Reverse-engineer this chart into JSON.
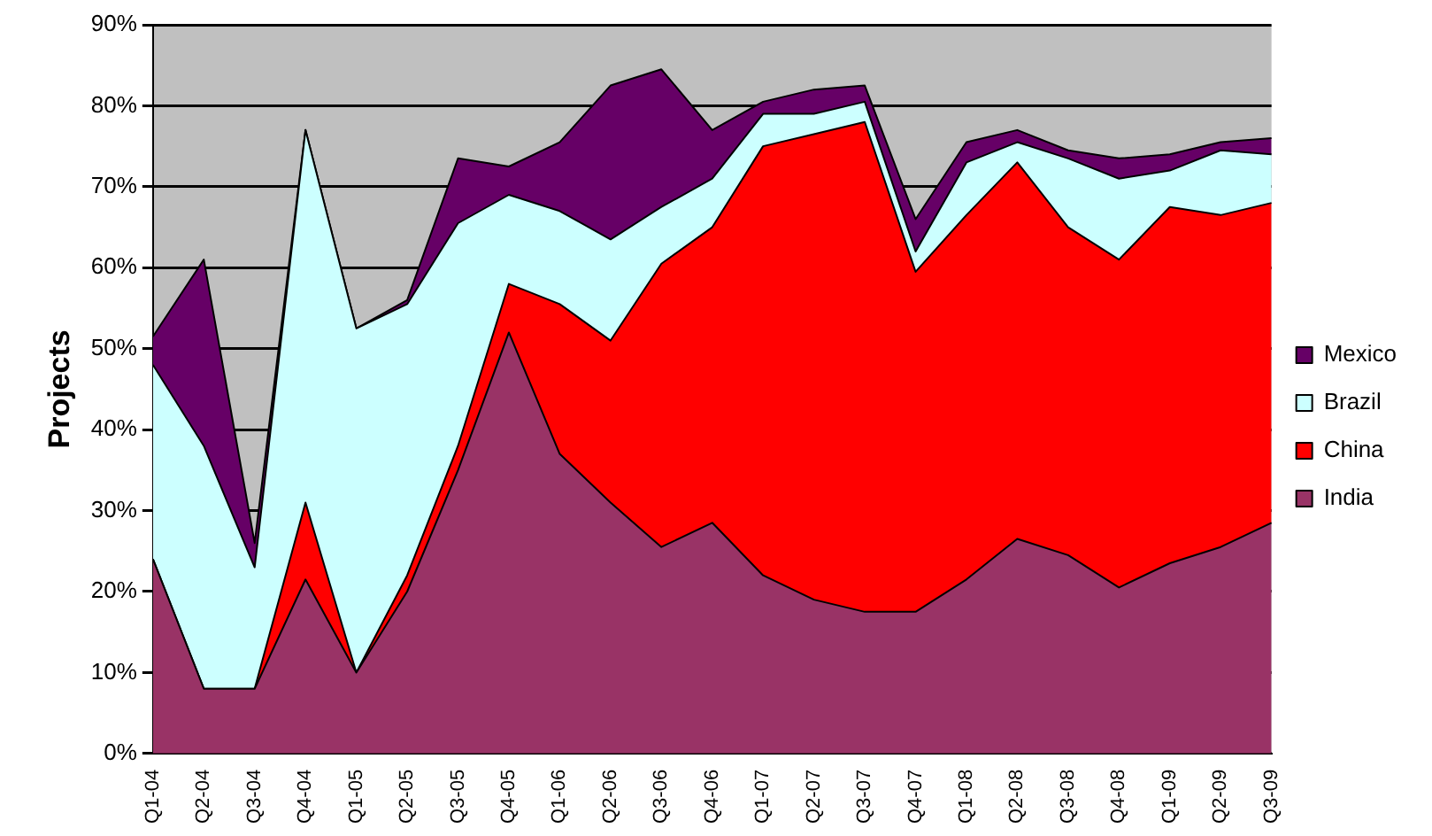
{
  "chart_data": {
    "type": "area",
    "stacked": true,
    "ylabel": "Projects",
    "categories": [
      "Q1-04",
      "Q2-04",
      "Q3-04",
      "Q4-04",
      "Q1-05",
      "Q2-05",
      "Q3-05",
      "Q4-05",
      "Q1-06",
      "Q2-06",
      "Q3-06",
      "Q4-06",
      "Q1-07",
      "Q2-07",
      "Q3-07",
      "Q4-07",
      "Q1-08",
      "Q2-08",
      "Q3-08",
      "Q4-08",
      "Q1-09",
      "Q2-09",
      "Q3-09"
    ],
    "series": [
      {
        "name": "India",
        "color": "#993366",
        "values": [
          24,
          8,
          8,
          21.5,
          10,
          20,
          35,
          52,
          37,
          31,
          25.5,
          28.5,
          22,
          19,
          17.5,
          17.5,
          21.5,
          26.5,
          24.5,
          20.5,
          23.5,
          25.5,
          28.5
        ]
      },
      {
        "name": "China",
        "color": "#ff0000",
        "values": [
          0,
          0,
          0,
          9.5,
          0,
          2,
          3,
          6,
          18.5,
          20,
          35,
          36.5,
          53,
          57.5,
          60.5,
          42,
          45,
          46.5,
          40.5,
          40.5,
          44,
          41,
          39.5
        ]
      },
      {
        "name": "Brazil",
        "color": "#ccffff",
        "values": [
          24,
          30,
          15,
          46,
          42.5,
          33.5,
          27.5,
          11,
          11.5,
          12.5,
          7,
          6,
          4,
          2.5,
          2.5,
          2.5,
          6.5,
          2.5,
          8.5,
          10,
          4.5,
          8,
          6
        ]
      },
      {
        "name": "Mexico",
        "color": "#660066",
        "values": [
          3.5,
          23,
          3,
          0,
          0,
          0.5,
          8,
          3.5,
          8.5,
          19,
          17,
          6,
          1.5,
          3,
          2,
          4,
          2.5,
          1.5,
          1,
          2.5,
          2,
          1,
          2
        ]
      }
    ],
    "ylim": [
      0,
      90
    ],
    "yticks": [
      {
        "value": 0,
        "label": "0%"
      },
      {
        "value": 10,
        "label": "10%"
      },
      {
        "value": 20,
        "label": "20%"
      },
      {
        "value": 30,
        "label": "30%"
      },
      {
        "value": 40,
        "label": "40%"
      },
      {
        "value": 50,
        "label": "50%"
      },
      {
        "value": 60,
        "label": "60%"
      },
      {
        "value": 70,
        "label": "70%"
      },
      {
        "value": 80,
        "label": "80%"
      },
      {
        "value": 90,
        "label": "90%"
      }
    ],
    "grid": "y",
    "legend": "right"
  }
}
